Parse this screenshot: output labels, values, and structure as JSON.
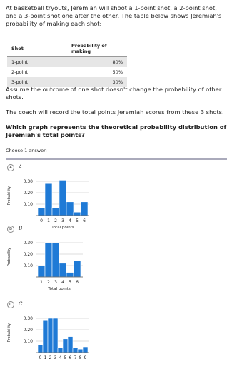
{
  "question": {
    "intro": "At basketball tryouts, Jeremiah will shoot a 1-point shot, a 2-point shot, and a 3-point shot one after the other. The table below shows Jeremiah's probability of making each shot:",
    "table": {
      "header": [
        "Shot",
        "Probability of making"
      ],
      "rows": [
        [
          "1-point",
          "80%"
        ],
        [
          "2-point",
          "50%"
        ],
        [
          "3-point",
          "30%"
        ]
      ]
    },
    "assume": "Assume the outcome of one shot doesn't change the probability of other shots.",
    "coach": "The coach will record the total points Jeremiah scores from these 3 shots.",
    "prompt": "Which graph represents the theoretical probability distribution of Jeremiah's total points?",
    "choose": "Choose 1 answer:"
  },
  "choices": [
    {
      "letter": "A",
      "label": "A",
      "ylabel": "Probability",
      "xlabel": "Total points",
      "categories": [
        "0",
        "1",
        "2",
        "3",
        "4",
        "5",
        "6"
      ],
      "values": [
        0.07,
        0.28,
        0.07,
        0.31,
        0.12,
        0.03,
        0.12
      ],
      "ylim": [
        0,
        0.35
      ],
      "yticks": [
        {
          "value": 0.1,
          "label": "0.10"
        },
        {
          "value": 0.2,
          "label": "0.20"
        },
        {
          "value": 0.3,
          "label": "0.30"
        }
      ]
    },
    {
      "letter": "B",
      "label": "B",
      "ylabel": "Probability",
      "xlabel": "Total points",
      "categories": [
        "1",
        "2",
        "3",
        "4",
        "5",
        "6"
      ],
      "values": [
        0.1,
        0.3,
        0.3,
        0.12,
        0.04,
        0.14
      ],
      "ylim": [
        0,
        0.35
      ],
      "yticks": [
        {
          "value": 0.1,
          "label": "0.10"
        },
        {
          "value": 0.2,
          "label": "0.20"
        },
        {
          "value": 0.3,
          "label": "0.30"
        }
      ]
    },
    {
      "letter": "C",
      "label": "C",
      "ylabel": "Probability",
      "categories": [
        "0",
        "1",
        "2",
        "3",
        "4",
        "5",
        "6",
        "7",
        "8",
        "9"
      ],
      "values": [
        0.07,
        0.28,
        0.3,
        0.3,
        0.04,
        0.12,
        0.14,
        0.04,
        0.03,
        0.05
      ],
      "ylim": [
        0,
        0.35
      ],
      "yticks": [
        {
          "value": 0.1,
          "label": "0.10"
        },
        {
          "value": 0.2,
          "label": "0.20"
        },
        {
          "value": 0.3,
          "label": "0.30"
        }
      ]
    }
  ]
}
